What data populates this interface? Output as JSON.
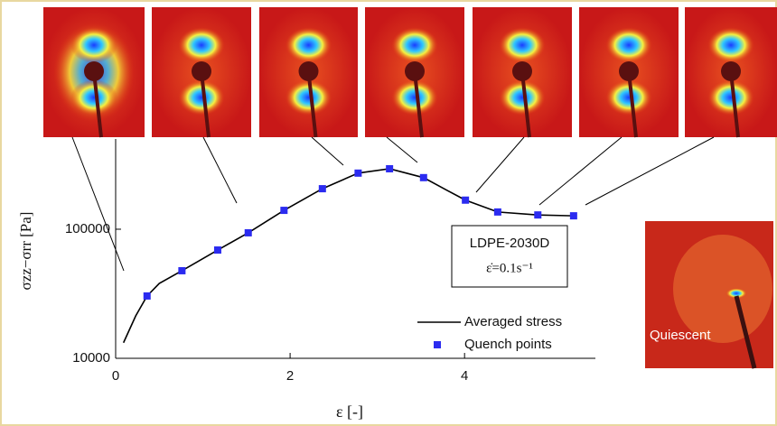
{
  "chart_data": {
    "type": "line",
    "x_label": "ε [-]",
    "y_label": "σzz−σrr [Pa]",
    "annotations": [
      "LDPE-2030D",
      "ε̇=0.1s⁻¹",
      "Quiescent"
    ],
    "xlim": [
      0,
      5.5
    ],
    "xticks": [
      0,
      2,
      4
    ],
    "ylim": [
      10000,
      500000
    ],
    "yticks": [
      10000,
      100000
    ],
    "log_y": true,
    "series": [
      {
        "name": "Averaged stress",
        "color": "#000000",
        "style": "line",
        "x": [
          0.09,
          0.23,
          0.36,
          0.5,
          0.76,
          1.17,
          1.52,
          1.93,
          2.37,
          2.78,
          3.14,
          3.53,
          3.8,
          4.01,
          4.38,
          4.84,
          5.25
        ],
        "values": [
          13200,
          21300,
          30400,
          38000,
          47700,
          69000,
          93800,
          140000,
          206000,
          272000,
          294000,
          251000,
          200000,
          168000,
          136000,
          129000,
          127000
        ]
      },
      {
        "name": "Quench points",
        "color": "#2b2bf0",
        "style": "marker",
        "x": [
          0.36,
          0.76,
          1.17,
          1.52,
          1.93,
          2.37,
          2.78,
          3.14,
          3.53,
          4.01,
          4.38,
          4.84,
          5.25
        ],
        "values": [
          30400,
          47700,
          69000,
          93800,
          140000,
          206000,
          272000,
          294000,
          251000,
          168000,
          136000,
          129000,
          127000
        ]
      }
    ]
  }
}
